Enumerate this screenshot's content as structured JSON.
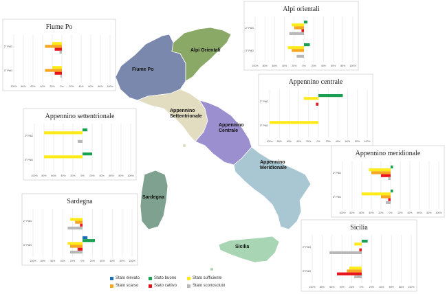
{
  "colors": {
    "Stato elevato": "#1f6fb4",
    "Stato buono": "#1aa051",
    "Stato sufficiente": "#ffeb1a",
    "Stato scarso": "#f6a623",
    "Stato cattivo": "#e8141b",
    "Stato sconosciuto": "#b8b8b8"
  },
  "regions": [
    {
      "name": "Fiume Po",
      "fill": "#7a88ad"
    },
    {
      "name": "Alpi Orientali",
      "fill": "#8aa866"
    },
    {
      "name": "Appennino Settentrionale",
      "fill": "#e2dcc0"
    },
    {
      "name": "Appennino Centrale",
      "fill": "#9c8fd0"
    },
    {
      "name": "Appennino Meridionale",
      "fill": "#a9c7d2"
    },
    {
      "name": "Sardegna",
      "fill": "#7fa290"
    },
    {
      "name": "Sicilia",
      "fill": "#a8d6b4"
    }
  ],
  "legend": {
    "items": [
      "Stato elevato",
      "Stato buono",
      "Stato sufficiente",
      "Stato scarso",
      "Stato cattivo",
      "Stato sconosciuto"
    ]
  },
  "chart_data": [
    {
      "type": "bar",
      "title": "Fiume Po",
      "categories": [
        "2° PdG",
        "3° PdG"
      ],
      "xlim": [
        -100,
        100
      ],
      "ticks": [
        "100%",
        "80%",
        "60%",
        "40%",
        "20%",
        "0%",
        "20%",
        "40%",
        "60%",
        "80%",
        "100%"
      ],
      "series": [
        {
          "name": "Stato sufficiente",
          "values": [
            -20,
            -20
          ]
        },
        {
          "name": "Stato scarso",
          "values": [
            -35,
            -35
          ]
        },
        {
          "name": "Stato cattivo",
          "values": [
            -15,
            -15
          ]
        },
        {
          "name": "Stato buono",
          "values": [
            0,
            0
          ]
        },
        {
          "name": "Stato sconosciuto",
          "values": [
            -5,
            -3
          ]
        }
      ]
    },
    {
      "type": "bar",
      "title": "Alpi orientali",
      "categories": [
        "2° PdG",
        "3° PdG"
      ],
      "xlim": [
        -100,
        100
      ],
      "ticks": [
        "100%",
        "80%",
        "60%",
        "40%",
        "20%",
        "0%",
        "20%",
        "40%",
        "60%",
        "80%",
        "100%"
      ],
      "series": [
        {
          "name": "Stato sufficiente",
          "values": [
            -25,
            -33
          ]
        },
        {
          "name": "Stato scarso",
          "values": [
            -20,
            -25
          ]
        },
        {
          "name": "Stato cattivo",
          "values": [
            -5,
            0
          ]
        },
        {
          "name": "Stato buono",
          "values": [
            7,
            12
          ]
        },
        {
          "name": "Stato sconosciuto",
          "values": [
            -30,
            -15
          ]
        }
      ]
    },
    {
      "type": "bar",
      "title": "Appennino centrale",
      "categories": [
        "2° PdG",
        "3° PdG"
      ],
      "xlim": [
        -100,
        100
      ],
      "ticks": [
        "100%",
        "80%",
        "60%",
        "40%",
        "20%",
        "0%",
        "20%",
        "40%",
        "60%",
        "80%",
        "100%"
      ],
      "series": [
        {
          "name": "Stato sufficiente",
          "values": [
            -30,
            -100
          ]
        },
        {
          "name": "Stato scarso",
          "values": [
            0,
            0
          ]
        },
        {
          "name": "Stato cattivo",
          "values": [
            -5,
            0
          ]
        },
        {
          "name": "Stato buono",
          "values": [
            50,
            0
          ]
        },
        {
          "name": "Stato sconosciuto",
          "values": [
            0,
            0
          ]
        }
      ]
    },
    {
      "type": "bar",
      "title": "Appennino settentrionale",
      "categories": [
        "2° PdG",
        "3° PdG"
      ],
      "xlim": [
        -100,
        100
      ],
      "ticks": [
        "100%",
        "80%",
        "60%",
        "40%",
        "20%",
        "0%",
        "20%",
        "40%",
        "60%",
        "80%",
        "100%"
      ],
      "series": [
        {
          "name": "Stato sufficiente",
          "values": [
            -80,
            -80
          ]
        },
        {
          "name": "Stato scarso",
          "values": [
            0,
            0
          ]
        },
        {
          "name": "Stato cattivo",
          "values": [
            0,
            0
          ]
        },
        {
          "name": "Stato buono",
          "values": [
            10,
            20
          ]
        },
        {
          "name": "Stato sconosciuto",
          "values": [
            -10,
            0
          ]
        }
      ]
    },
    {
      "type": "bar",
      "title": "Appennino meridionale",
      "categories": [
        "2° PdG",
        "3° PdG"
      ],
      "xlim": [
        -100,
        100
      ],
      "ticks": [
        "100%",
        "80%",
        "60%",
        "40%",
        "20%",
        "0%",
        "20%",
        "40%",
        "60%",
        "80%",
        "100%"
      ],
      "series": [
        {
          "name": "Stato sufficiente",
          "values": [
            -45,
            -60
          ]
        },
        {
          "name": "Stato scarso",
          "values": [
            -40,
            -20
          ]
        },
        {
          "name": "Stato cattivo",
          "values": [
            -20,
            -5
          ]
        },
        {
          "name": "Stato buono",
          "values": [
            5,
            5
          ]
        },
        {
          "name": "Stato sconosciuto",
          "values": [
            -5,
            -10
          ]
        }
      ]
    },
    {
      "type": "bar",
      "title": "Sardegna",
      "categories": [
        "2° PdG",
        "3° PdG"
      ],
      "xlim": [
        -100,
        100
      ],
      "ticks": [
        "100%",
        "80%",
        "60%",
        "40%",
        "20%",
        "0%",
        "20%",
        "40%",
        "60%",
        "80%",
        "100%"
      ],
      "series": [
        {
          "name": "Stato elevato",
          "values": [
            0,
            10
          ]
        },
        {
          "name": "Stato sufficiente",
          "values": [
            -25,
            -30
          ]
        },
        {
          "name": "Stato scarso",
          "values": [
            -15,
            -25
          ]
        },
        {
          "name": "Stato cattivo",
          "values": [
            -5,
            -10
          ]
        },
        {
          "name": "Stato buono",
          "values": [
            0,
            25
          ]
        },
        {
          "name": "Stato sconosciuto",
          "values": [
            -30,
            -25
          ]
        }
      ]
    },
    {
      "type": "bar",
      "title": "Sicilia",
      "categories": [
        "2° PdG",
        "3° PdG"
      ],
      "xlim": [
        -100,
        100
      ],
      "ticks": [
        "100%",
        "80%",
        "60%",
        "40%",
        "20%",
        "0%",
        "20%",
        "40%",
        "60%",
        "80%",
        "100%"
      ],
      "series": [
        {
          "name": "Stato sufficiente",
          "values": [
            -15,
            -25
          ]
        },
        {
          "name": "Stato scarso",
          "values": [
            0,
            -30
          ]
        },
        {
          "name": "Stato cattivo",
          "values": [
            -5,
            -50
          ]
        },
        {
          "name": "Stato buono",
          "values": [
            12,
            0
          ]
        },
        {
          "name": "Stato sconosciuto",
          "values": [
            -65,
            -15
          ]
        }
      ]
    }
  ]
}
